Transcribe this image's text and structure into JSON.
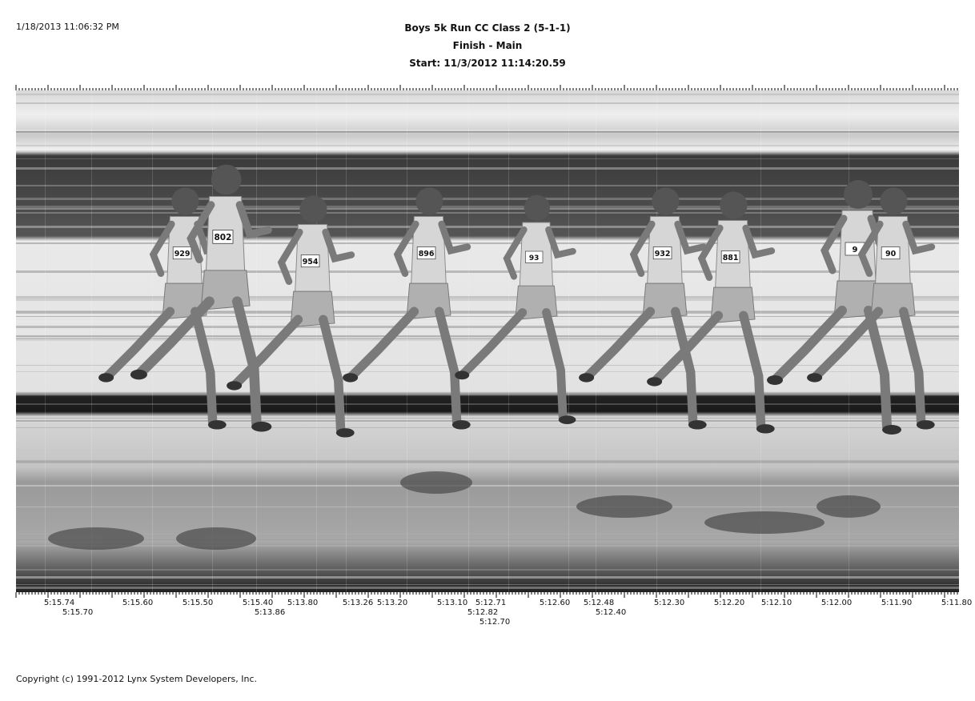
{
  "header": {
    "timestamp": "1/18/2013 11:06:32 PM",
    "race_title": "Boys 5k Run CC Class 2 (5-1-1)",
    "camera": "Finish - Main",
    "start_time": "Start: 11/3/2012 11:14:20.59"
  },
  "time_labels": [
    "5:15.74",
    "5:15.70",
    "5:15.60",
    "5:15.50",
    "5:15.40",
    "5:13.86",
    "5:13.80",
    "5:13.26",
    "5:13.20",
    "5:13.10",
    "5:12.71",
    "5:12.82",
    "5:12.70",
    "5:12.60",
    "5:12.48",
    "5:12.40",
    "5:12.30",
    "5:12.20",
    "5:12.10",
    "5:12.00",
    "5:11.90",
    "5:11.80"
  ],
  "bibs": [
    "929",
    "802",
    "954",
    "896",
    "93",
    "932",
    "881",
    "9",
    "90"
  ],
  "footer": {
    "copyright": "Copyright (c) 1991-2012 Lynx System Developers, Inc."
  }
}
